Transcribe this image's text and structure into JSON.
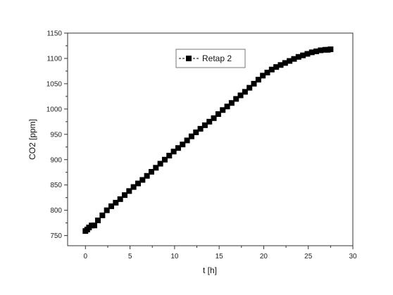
{
  "chart_data": {
    "type": "line",
    "xlabel": "t [h]",
    "ylabel": "CO2 [ppm]",
    "xlim": [
      -2,
      30
    ],
    "ylim": [
      730,
      1150
    ],
    "x_ticks": [
      0,
      5,
      10,
      15,
      20,
      25,
      30
    ],
    "y_ticks": [
      750,
      800,
      850,
      900,
      950,
      1000,
      1050,
      1100,
      1150
    ],
    "grid": false,
    "legend_position": "top-center",
    "series": [
      {
        "name": "Retap 2",
        "color": "#000000",
        "marker": "square",
        "line_style": "dashed",
        "x": [
          0,
          0.2,
          0.4,
          0.7,
          1.0,
          1.4,
          1.9,
          2.4,
          2.9,
          3.4,
          3.9,
          4.4,
          4.9,
          5.4,
          5.9,
          6.4,
          6.9,
          7.4,
          7.9,
          8.4,
          8.9,
          9.4,
          9.9,
          10.4,
          10.9,
          11.4,
          11.9,
          12.4,
          12.9,
          13.4,
          13.9,
          14.4,
          14.9,
          15.4,
          15.9,
          16.4,
          16.9,
          17.4,
          17.9,
          18.4,
          18.9,
          19.4,
          19.9,
          20.4,
          20.9,
          21.4,
          21.9,
          22.4,
          22.9,
          23.4,
          23.9,
          24.4,
          24.9,
          25.4,
          25.9,
          26.4,
          26.9,
          27.2,
          27.5
        ],
        "y": [
          759,
          762,
          766,
          770,
          770,
          780,
          790,
          800,
          808,
          815,
          822,
          830,
          838,
          846,
          853,
          860,
          868,
          876,
          884,
          892,
          900,
          908,
          916,
          923,
          930,
          938,
          946,
          954,
          961,
          968,
          975,
          982,
          990,
          998,
          1005,
          1012,
          1020,
          1027,
          1034,
          1042,
          1050,
          1058,
          1066,
          1072,
          1078,
          1083,
          1087,
          1091,
          1095,
          1099,
          1103,
          1106,
          1109,
          1112,
          1114,
          1116,
          1117,
          1117,
          1118
        ]
      }
    ]
  }
}
